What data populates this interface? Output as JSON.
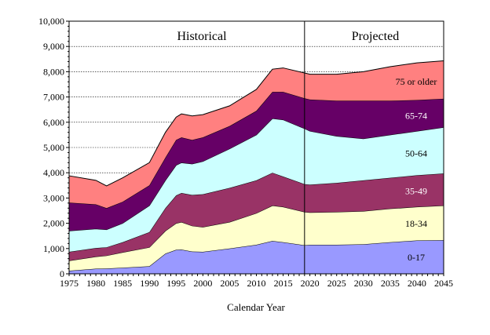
{
  "chart_data": {
    "type": "area",
    "stacked": true,
    "xlabel": "Calendar Year",
    "ylabel": "",
    "xlim": [
      1975,
      2045
    ],
    "ylim": [
      0,
      10000
    ],
    "grid": "horizontal dotted",
    "xticks": [
      "1975",
      "1980",
      "1985",
      "1990",
      "1995",
      "2000",
      "2005",
      "2010",
      "2015",
      "2020",
      "2025",
      "2030",
      "2035",
      "2040",
      "2045"
    ],
    "yticks": [
      "0",
      "1,000",
      "2,000",
      "3,000",
      "4,000",
      "5,000",
      "6,000",
      "7,000",
      "8,000",
      "9,000",
      "10,000"
    ],
    "annotations": [
      {
        "text": "Historical"
      },
      {
        "text": "Projected"
      }
    ],
    "divider_year": 2019,
    "x": [
      1975,
      1980,
      1982,
      1985,
      1990,
      1993,
      1995,
      1996,
      1998,
      2000,
      2005,
      2010,
      2013,
      2015,
      2019,
      2020,
      2025,
      2030,
      2035,
      2040,
      2045
    ],
    "series": [
      {
        "name": "0-17",
        "color": "#9999ff",
        "label_color": "#000000",
        "values": [
          120,
          200,
          210,
          240,
          300,
          800,
          950,
          960,
          880,
          870,
          1000,
          1150,
          1300,
          1250,
          1130,
          1150,
          1150,
          1170,
          1250,
          1320,
          1330
        ]
      },
      {
        "name": "18-34",
        "color": "#ffffcc",
        "label_color": "#000000",
        "values": [
          400,
          480,
          510,
          610,
          750,
          900,
          1050,
          1090,
          1020,
          980,
          1050,
          1250,
          1400,
          1400,
          1320,
          1280,
          1300,
          1310,
          1330,
          1330,
          1370
        ]
      },
      {
        "name": "35-49",
        "color": "#993366",
        "label_color": "#ffffff",
        "values": [
          350,
          340,
          330,
          400,
          600,
          900,
          1100,
          1150,
          1220,
          1300,
          1350,
          1300,
          1300,
          1200,
          1100,
          1100,
          1150,
          1220,
          1220,
          1250,
          1270
        ]
      },
      {
        "name": "50-64",
        "color": "#ccffff",
        "label_color": "#000000",
        "values": [
          830,
          760,
          700,
          750,
          1050,
          1100,
          1200,
          1200,
          1230,
          1300,
          1550,
          1800,
          2150,
          2250,
          2200,
          2120,
          1850,
          1650,
          1700,
          1750,
          1830
        ]
      },
      {
        "name": "65-74",
        "color": "#660066",
        "label_color": "#ffffff",
        "values": [
          1120,
          970,
          850,
          850,
          800,
          900,
          1000,
          1000,
          950,
          950,
          900,
          950,
          1050,
          1100,
          1200,
          1250,
          1400,
          1500,
          1350,
          1230,
          1130
        ]
      },
      {
        "name": "75 or older",
        "color": "#ff8080",
        "label_color": "#000000",
        "values": [
          1060,
          950,
          880,
          950,
          900,
          1000,
          900,
          930,
          950,
          900,
          800,
          850,
          900,
          950,
          1000,
          1000,
          1050,
          1150,
          1350,
          1470,
          1500
        ]
      }
    ]
  }
}
